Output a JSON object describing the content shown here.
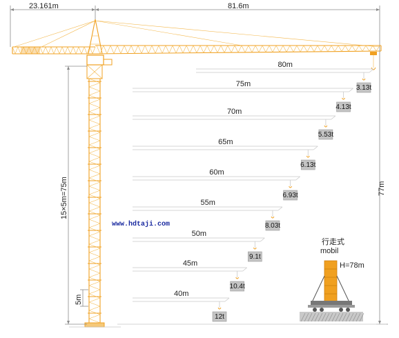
{
  "dimensions": {
    "counter_jib": "23.161m",
    "main_jib": "81.6m",
    "mast": "15×5m=75m",
    "section": "5m",
    "total_height": "77m"
  },
  "load_chart": [
    {
      "radius": "80m",
      "load": "3.13t"
    },
    {
      "radius": "75m",
      "load": "4.13t"
    },
    {
      "radius": "70m",
      "load": "5.53t"
    },
    {
      "radius": "65m",
      "load": "6.13t"
    },
    {
      "radius": "60m",
      "load": "6.93t"
    },
    {
      "radius": "55m",
      "load": "8.03t"
    },
    {
      "radius": "50m",
      "load": "9.1t"
    },
    {
      "radius": "45m",
      "load": "10.4t"
    },
    {
      "radius": "40m",
      "load": "12t"
    }
  ],
  "website": "www.hdtaji.com",
  "mobile": {
    "cn": "行走式",
    "en": "mobil",
    "height": "H=78m"
  },
  "colors": {
    "crane": "#f0a020",
    "tag": "#c4c4c4",
    "url": "#1a2aa0"
  }
}
